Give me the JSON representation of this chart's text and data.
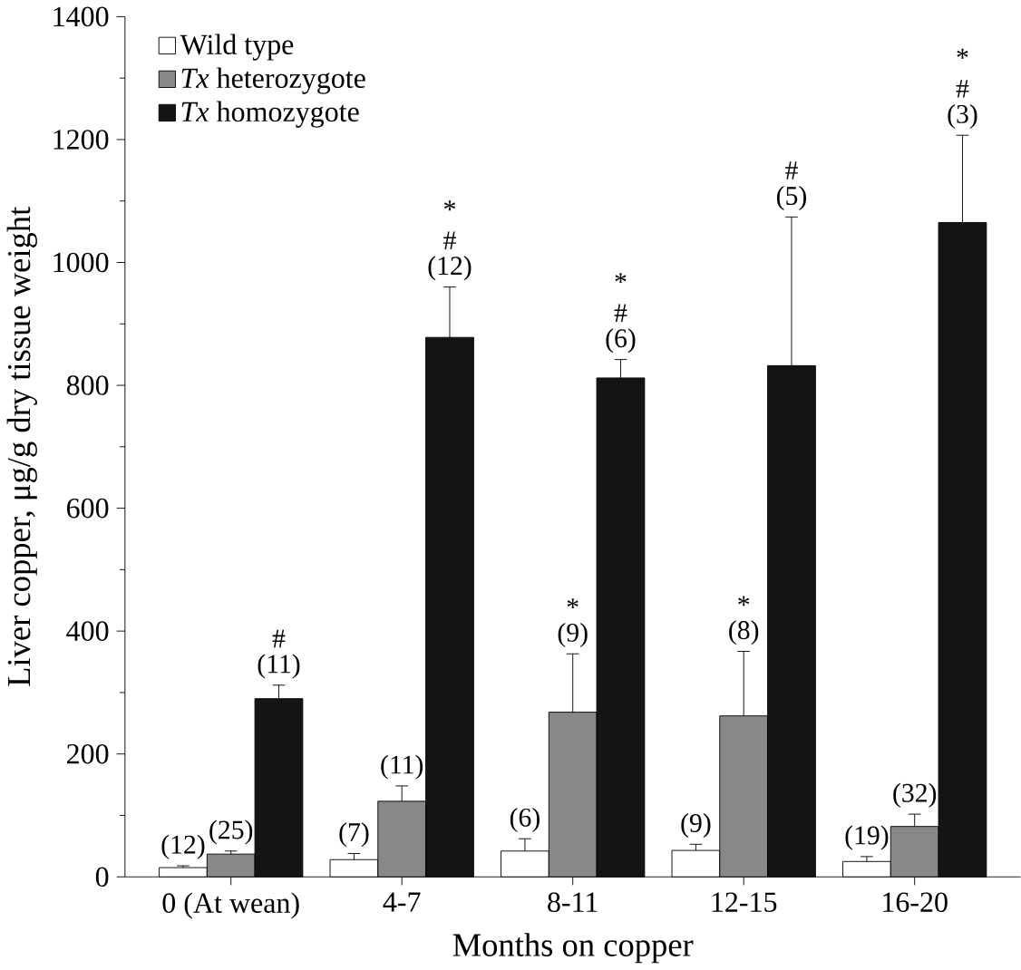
{
  "chart_data": {
    "type": "bar",
    "xlabel": "Months on copper",
    "ylabel": "Liver copper,  μg/g dry tissue weight",
    "categories": [
      "0 (At wean)",
      "4-7",
      "8-11",
      "12-15",
      "16-20"
    ],
    "series": [
      {
        "name": "Wild type",
        "color": "#ffffff",
        "values": [
          15,
          28,
          42,
          43,
          25
        ],
        "errors": [
          3,
          10,
          20,
          10,
          8
        ]
      },
      {
        "name": "*Tx* heterozygote",
        "color": "#888888",
        "values": [
          37,
          123,
          268,
          262,
          82
        ],
        "errors": [
          5,
          25,
          95,
          105,
          20
        ]
      },
      {
        "name": "*Tx* homozygote",
        "color": "#141414",
        "values": [
          290,
          878,
          812,
          832,
          1065
        ],
        "errors": [
          22,
          82,
          30,
          242,
          142
        ]
      }
    ],
    "ylim": [
      0,
      1400
    ],
    "yticks": [
      0,
      200,
      400,
      600,
      800,
      1000,
      1200,
      1400
    ],
    "legend": "top left",
    "grid": false,
    "annotations": [
      "(12)",
      "(25)",
      "(11)",
      "#",
      "(7)",
      "(11)",
      "(12)",
      "#",
      "*",
      "(6)",
      "(9)",
      "*",
      "(6)",
      "#",
      "*",
      "(9)",
      "(8)",
      "*",
      "(5)",
      "#",
      "(19)",
      "(32)",
      "(3)",
      "#",
      "*"
    ]
  }
}
